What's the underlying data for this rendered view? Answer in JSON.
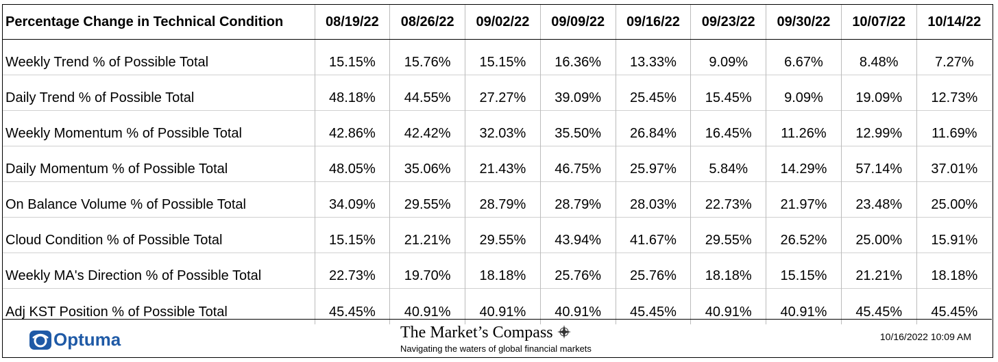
{
  "table": {
    "header": [
      "Percentage Change in Technical Condition",
      "08/19/22",
      "08/26/22",
      "09/02/22",
      "09/09/22",
      "09/16/22",
      "09/23/22",
      "09/30/22",
      "10/07/22",
      "10/14/22"
    ],
    "rows": [
      [
        "Weekly Trend % of Possible Total",
        "15.15%",
        "15.76%",
        "15.15%",
        "16.36%",
        "13.33%",
        "9.09%",
        "6.67%",
        "8.48%",
        "7.27%"
      ],
      [
        "Daily Trend % of Possible Total",
        "48.18%",
        "44.55%",
        "27.27%",
        "39.09%",
        "25.45%",
        "15.45%",
        "9.09%",
        "19.09%",
        "12.73%"
      ],
      [
        "Weekly Momentum % of Possible Total",
        "42.86%",
        "42.42%",
        "32.03%",
        "35.50%",
        "26.84%",
        "16.45%",
        "11.26%",
        "12.99%",
        "11.69%"
      ],
      [
        "Daily Momentum % of Possible Total",
        "48.05%",
        "35.06%",
        "21.43%",
        "46.75%",
        "25.97%",
        "5.84%",
        "14.29%",
        "57.14%",
        "37.01%"
      ],
      [
        "On Balance Volume % of Possible Total",
        "34.09%",
        "29.55%",
        "28.79%",
        "28.79%",
        "28.03%",
        "22.73%",
        "21.97%",
        "23.48%",
        "25.00%"
      ],
      [
        "Cloud Condition % of Possible Total",
        "15.15%",
        "21.21%",
        "29.55%",
        "43.94%",
        "41.67%",
        "29.55%",
        "26.52%",
        "25.00%",
        "15.91%"
      ],
      [
        "Weekly MA's Direction % of Possible Total",
        "22.73%",
        "19.70%",
        "18.18%",
        "25.76%",
        "25.76%",
        "18.18%",
        "15.15%",
        "21.21%",
        "18.18%"
      ],
      [
        "Adj KST Position % of Possible Total",
        "45.45%",
        "40.91%",
        "40.91%",
        "40.91%",
        "45.45%",
        "40.91%",
        "40.91%",
        "45.45%",
        "45.45%"
      ]
    ]
  },
  "footer": {
    "logo": "Optuma",
    "brand": "The Market’s Compass",
    "tagline": "Navigating the waters of global financial markets",
    "timestamp": "10/16/2022 10:09 AM"
  }
}
